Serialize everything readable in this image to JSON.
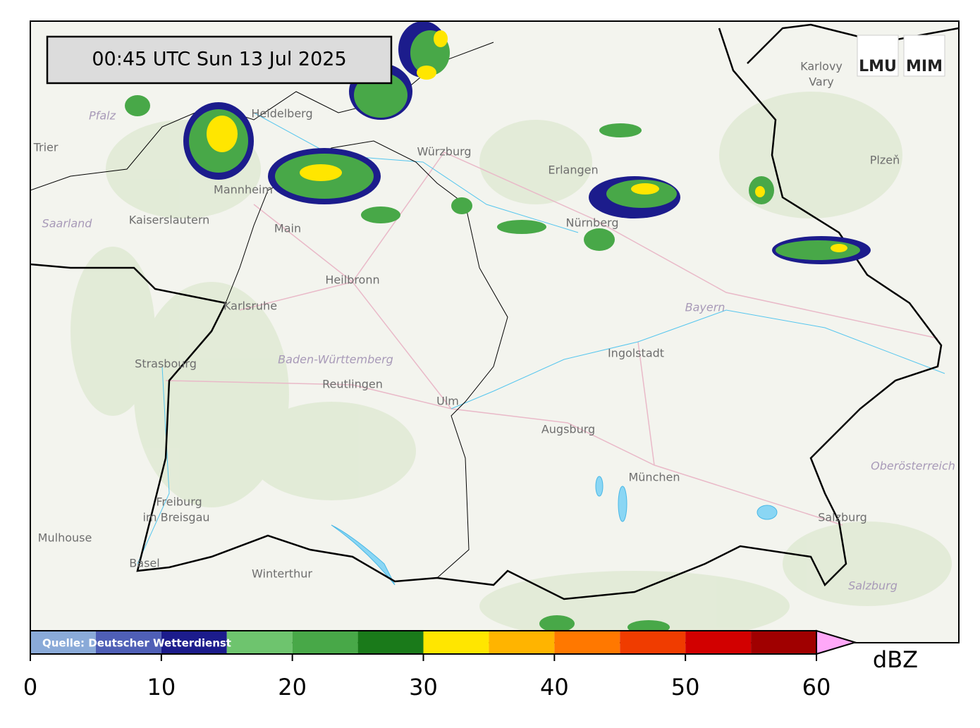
{
  "timestamp": "00:45 UTC  Sun 13 Jul 2025",
  "logos": [
    "LMU",
    "MIM"
  ],
  "source": "Quelle: Deutscher Wetterdienst",
  "colorbar": {
    "unit": "dBZ",
    "ticks": [
      0,
      10,
      20,
      30,
      40,
      50,
      60
    ],
    "lim": [
      0,
      60
    ],
    "bounds": [
      0,
      5,
      10,
      15,
      20,
      25,
      30,
      35,
      40,
      45,
      50,
      55,
      60
    ],
    "colors": [
      "#8aaad8",
      "#4f5fb6",
      "#1c1c8c",
      "#6ec46e",
      "#48a848",
      "#1a7a1a",
      "#ffe600",
      "#ffb400",
      "#ff7800",
      "#f03c00",
      "#d20000",
      "#a00000"
    ],
    "extend_color": "#ffa8f8"
  },
  "places": [
    "Karlovy",
    "Vary",
    "Trier",
    "Kaiserslautern",
    "Mannheim",
    "Heidelberg",
    "Main",
    "Würzburg",
    "Erlangen",
    "Nürnberg",
    "Plzeň",
    "Heilbronn",
    "Karlsruhe",
    "Ingolstadt",
    "Strasbourg",
    "Reutlingen",
    "Ulm",
    "Augsburg",
    "München",
    "Freiburg",
    "im Breisgau",
    "Mulhouse",
    "Salzburg",
    "Basel",
    "Winterthur"
  ],
  "regions": [
    "Pfalz",
    "Saarland",
    "Bayern",
    "Baden-Württemberg",
    "Oberösterreich",
    "Salzburg"
  ]
}
